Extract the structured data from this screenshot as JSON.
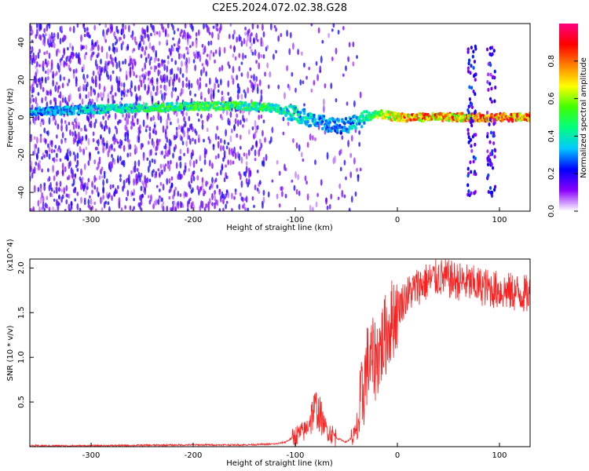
{
  "figure_title": "C2E5.2024.072.02.38.G28",
  "chart_data": [
    {
      "type": "heatmap",
      "xlabel": "Height of straight line (km)",
      "ylabel": "Frequency (Hz)",
      "xlim": [
        -360,
        130
      ],
      "ylim": [
        -50,
        50
      ],
      "xticks": [
        -300,
        -200,
        -100,
        0,
        100
      ],
      "yticks": [
        -40,
        -20,
        0,
        20,
        40
      ],
      "colorbar": {
        "label": "Normalized spectral amplitude",
        "range": [
          0,
          1
        ],
        "ticks": [
          "0.0",
          "0.2",
          "0.4",
          "0.6",
          "0.8"
        ],
        "colors": [
          "#ffffff",
          "#8a00ff",
          "#0000ff",
          "#00c8ff",
          "#00ff80",
          "#40ff00",
          "#ffff00",
          "#ff8000",
          "#ff0000",
          "#ff0080"
        ]
      },
      "ridge": {
        "x": [
          -360,
          -300,
          -250,
          -200,
          -150,
          -120,
          -100,
          -80,
          -60,
          -40,
          -30,
          -20,
          0,
          50,
          100,
          130
        ],
        "freq": [
          3,
          4,
          5,
          6,
          6,
          5,
          2,
          -2,
          -5,
          -3,
          0,
          2,
          0,
          0,
          0,
          0
        ],
        "amplitude": [
          0.35,
          0.4,
          0.5,
          0.55,
          0.55,
          0.5,
          0.45,
          0.4,
          0.35,
          0.4,
          0.5,
          0.6,
          0.8,
          0.85,
          0.9,
          0.9
        ]
      },
      "noise_bursts_x": [
        73,
        92
      ]
    },
    {
      "type": "line",
      "xlabel": "Height of straight line (km)",
      "ylabel": "SNR (10 * v/v)",
      "y_multiplier": "(x10^4)",
      "xlim": [
        -360,
        130
      ],
      "ylim": [
        0,
        2.1
      ],
      "xticks": [
        -300,
        -200,
        -100,
        0,
        100
      ],
      "yticks": [
        0.5,
        1.0,
        1.5,
        2.0
      ],
      "color": "#ff2020",
      "series": [
        {
          "x": [
            -360,
            -300,
            -200,
            -150,
            -120,
            -110,
            -100,
            -90,
            -80,
            -70,
            -60,
            -50,
            -40,
            -35,
            -30,
            -20,
            -10,
            0,
            10,
            20,
            30,
            40,
            60,
            80,
            100,
            130
          ],
          "values": [
            0.01,
            0.01,
            0.02,
            0.02,
            0.03,
            0.05,
            0.12,
            0.18,
            0.45,
            0.2,
            0.1,
            0.05,
            0.15,
            0.5,
            0.9,
            1.0,
            1.3,
            1.55,
            1.7,
            1.8,
            1.85,
            1.9,
            1.85,
            1.8,
            1.75,
            1.7
          ]
        }
      ]
    }
  ]
}
